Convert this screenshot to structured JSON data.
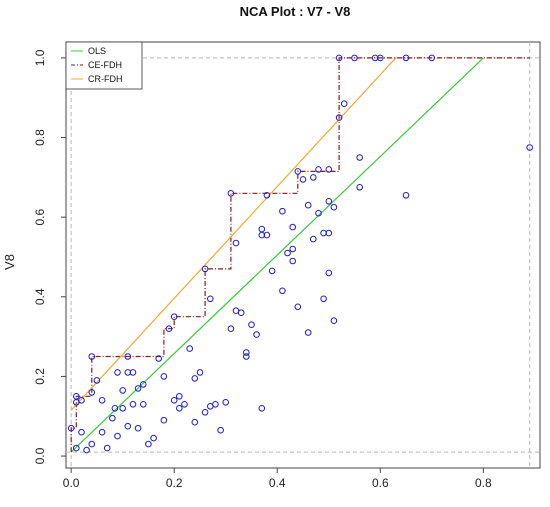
{
  "chart_data": {
    "type": "scatter",
    "title": "NCA Plot : V7 - V8",
    "xlabel": "",
    "ylabel": "V8",
    "xlim": [
      -0.01,
      0.91
    ],
    "ylim": [
      -0.03,
      1.04
    ],
    "x_ticks": [
      0.0,
      0.2,
      0.4,
      0.6,
      0.8
    ],
    "x_tick_labels": [
      "0.0",
      "0.2",
      "0.4",
      "0.6",
      "0.8"
    ],
    "y_ticks": [
      0.0,
      0.2,
      0.4,
      0.6,
      0.8,
      1.0
    ],
    "y_tick_labels": [
      "0.0",
      "0.2",
      "0.4",
      "0.6",
      "0.8",
      "1.0"
    ],
    "scope_box": {
      "x": [
        0.0,
        0.89
      ],
      "y": [
        0.01,
        1.0
      ]
    },
    "legend": {
      "position": "top-left",
      "entries": [
        {
          "label": "OLS",
          "color": "#33cc33",
          "dash": "solid"
        },
        {
          "label": "CE-FDH",
          "color": "#8b1a1a",
          "dash": "dashdot"
        },
        {
          "label": "CR-FDH",
          "color": "#f0a830",
          "dash": "solid"
        }
      ]
    },
    "points_color": "#1a1acc",
    "series": [
      {
        "name": "observations",
        "points": [
          [
            0.0,
            0.07
          ],
          [
            0.01,
            0.15
          ],
          [
            0.01,
            0.135
          ],
          [
            0.02,
            0.14
          ],
          [
            0.01,
            0.02
          ],
          [
            0.02,
            0.06
          ],
          [
            0.03,
            0.015
          ],
          [
            0.04,
            0.03
          ],
          [
            0.04,
            0.25
          ],
          [
            0.04,
            0.16
          ],
          [
            0.05,
            0.19
          ],
          [
            0.06,
            0.14
          ],
          [
            0.06,
            0.06
          ],
          [
            0.07,
            0.02
          ],
          [
            0.08,
            0.095
          ],
          [
            0.085,
            0.12
          ],
          [
            0.09,
            0.05
          ],
          [
            0.09,
            0.21
          ],
          [
            0.1,
            0.165
          ],
          [
            0.1,
            0.12
          ],
          [
            0.11,
            0.21
          ],
          [
            0.11,
            0.075
          ],
          [
            0.11,
            0.25
          ],
          [
            0.12,
            0.21
          ],
          [
            0.12,
            0.13
          ],
          [
            0.13,
            0.17
          ],
          [
            0.13,
            0.07
          ],
          [
            0.14,
            0.13
          ],
          [
            0.14,
            0.18
          ],
          [
            0.15,
            0.03
          ],
          [
            0.16,
            0.045
          ],
          [
            0.17,
            0.245
          ],
          [
            0.18,
            0.2
          ],
          [
            0.18,
            0.09
          ],
          [
            0.19,
            0.32
          ],
          [
            0.2,
            0.14
          ],
          [
            0.2,
            0.35
          ],
          [
            0.21,
            0.15
          ],
          [
            0.21,
            0.12
          ],
          [
            0.22,
            0.13
          ],
          [
            0.23,
            0.27
          ],
          [
            0.24,
            0.195
          ],
          [
            0.24,
            0.085
          ],
          [
            0.25,
            0.21
          ],
          [
            0.26,
            0.11
          ],
          [
            0.26,
            0.47
          ],
          [
            0.27,
            0.125
          ],
          [
            0.27,
            0.395
          ],
          [
            0.28,
            0.13
          ],
          [
            0.29,
            0.065
          ],
          [
            0.3,
            0.135
          ],
          [
            0.31,
            0.66
          ],
          [
            0.31,
            0.32
          ],
          [
            0.32,
            0.535
          ],
          [
            0.32,
            0.365
          ],
          [
            0.33,
            0.36
          ],
          [
            0.34,
            0.25
          ],
          [
            0.34,
            0.26
          ],
          [
            0.35,
            0.33
          ],
          [
            0.36,
            0.305
          ],
          [
            0.37,
            0.555
          ],
          [
            0.37,
            0.12
          ],
          [
            0.38,
            0.555
          ],
          [
            0.38,
            0.655
          ],
          [
            0.39,
            0.465
          ],
          [
            0.41,
            0.615
          ],
          [
            0.41,
            0.415
          ],
          [
            0.42,
            0.51
          ],
          [
            0.43,
            0.575
          ],
          [
            0.43,
            0.49
          ],
          [
            0.43,
            0.52
          ],
          [
            0.44,
            0.715
          ],
          [
            0.44,
            0.375
          ],
          [
            0.45,
            0.695
          ],
          [
            0.46,
            0.31
          ],
          [
            0.46,
            0.63
          ],
          [
            0.47,
            0.7
          ],
          [
            0.47,
            0.545
          ],
          [
            0.48,
            0.72
          ],
          [
            0.48,
            0.61
          ],
          [
            0.49,
            0.56
          ],
          [
            0.49,
            0.395
          ],
          [
            0.5,
            0.72
          ],
          [
            0.5,
            0.64
          ],
          [
            0.5,
            0.56
          ],
          [
            0.5,
            0.46
          ],
          [
            0.51,
            0.625
          ],
          [
            0.51,
            0.34
          ],
          [
            0.52,
            0.85
          ],
          [
            0.52,
            1.0
          ],
          [
            0.53,
            0.885
          ],
          [
            0.55,
            1.0
          ],
          [
            0.56,
            0.75
          ],
          [
            0.56,
            0.675
          ],
          [
            0.59,
            1.0
          ],
          [
            0.6,
            1.0
          ],
          [
            0.65,
            1.0
          ],
          [
            0.65,
            0.655
          ],
          [
            0.7,
            1.0
          ],
          [
            0.89,
            0.775
          ],
          [
            0.37,
            0.57
          ]
        ]
      },
      {
        "name": "OLS",
        "line": [
          [
            0.0,
            0.01
          ],
          [
            0.8,
            1.0
          ]
        ]
      },
      {
        "name": "CE-FDH",
        "step": [
          [
            0.0,
            0.01
          ],
          [
            0.0,
            0.07
          ],
          [
            0.01,
            0.07
          ],
          [
            0.01,
            0.15
          ],
          [
            0.04,
            0.15
          ],
          [
            0.04,
            0.25
          ],
          [
            0.18,
            0.25
          ],
          [
            0.18,
            0.32
          ],
          [
            0.2,
            0.32
          ],
          [
            0.2,
            0.35
          ],
          [
            0.26,
            0.35
          ],
          [
            0.26,
            0.47
          ],
          [
            0.31,
            0.47
          ],
          [
            0.31,
            0.66
          ],
          [
            0.44,
            0.66
          ],
          [
            0.44,
            0.715
          ],
          [
            0.52,
            0.715
          ],
          [
            0.52,
            1.0
          ],
          [
            0.89,
            1.0
          ]
        ]
      },
      {
        "name": "CR-FDH",
        "line": [
          [
            0.0,
            0.115
          ],
          [
            0.63,
            1.0
          ]
        ]
      }
    ]
  }
}
